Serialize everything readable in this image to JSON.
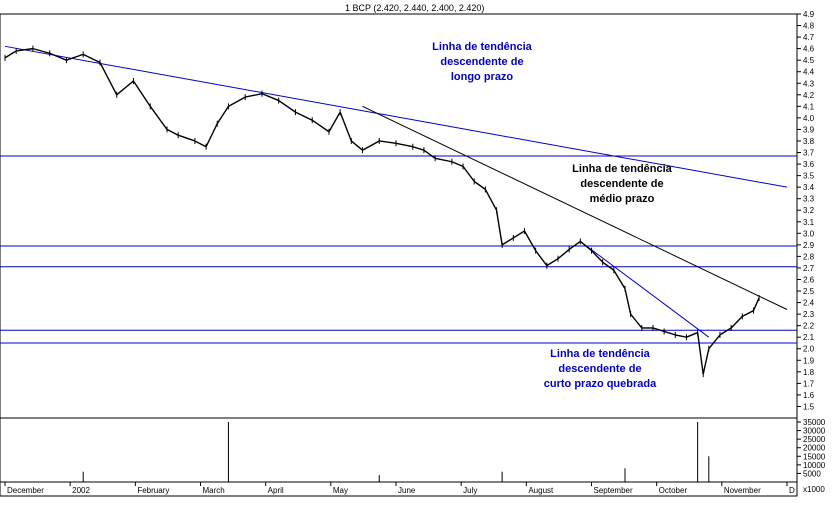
{
  "chart_data": {
    "type": "line",
    "title": "1 BCP (2.420, 2.440, 2.400, 2.420)",
    "price_axis": {
      "ylim": [
        1.4,
        4.9
      ],
      "tick_labels": [
        "1.5",
        "1.6",
        "1.7",
        "1.8",
        "1.9",
        "2.0",
        "2.1",
        "2.2",
        "2.3",
        "2.4",
        "2.5",
        "2.6",
        "2.7",
        "2.8",
        "2.9",
        "3.0",
        "3.1",
        "3.2",
        "3.3",
        "3.4",
        "3.5",
        "3.6",
        "3.7",
        "3.8",
        "3.9",
        "4.0",
        "4.1",
        "4.2",
        "4.3",
        "4.4",
        "4.5",
        "4.6",
        "4.7",
        "4.8",
        "4.9"
      ]
    },
    "volume_axis": {
      "ylim": [
        0,
        35000
      ],
      "tick_labels": [
        "5000",
        "10000",
        "15000",
        "20000",
        "25000",
        "30000",
        "35000"
      ],
      "multiplier_label": "x1000"
    },
    "x_axis": {
      "tick_labels": [
        "December",
        "2002",
        "February",
        "March",
        "April",
        "May",
        "June",
        "July",
        "August",
        "September",
        "October",
        "November",
        "D"
      ]
    },
    "horizontal_levels": [
      3.67,
      2.89,
      2.71,
      2.16,
      2.05
    ],
    "price_series": [
      {
        "t": 0,
        "v": 4.52
      },
      {
        "t": 2,
        "v": 4.58
      },
      {
        "t": 5,
        "v": 4.6
      },
      {
        "t": 8,
        "v": 4.56
      },
      {
        "t": 11,
        "v": 4.5
      },
      {
        "t": 14,
        "v": 4.55
      },
      {
        "t": 17,
        "v": 4.48
      },
      {
        "t": 20,
        "v": 4.2
      },
      {
        "t": 23,
        "v": 4.32
      },
      {
        "t": 26,
        "v": 4.1
      },
      {
        "t": 29,
        "v": 3.9
      },
      {
        "t": 31,
        "v": 3.85
      },
      {
        "t": 34,
        "v": 3.8
      },
      {
        "t": 36,
        "v": 3.75
      },
      {
        "t": 38,
        "v": 3.95
      },
      {
        "t": 40,
        "v": 4.1
      },
      {
        "t": 43,
        "v": 4.18
      },
      {
        "t": 46,
        "v": 4.21
      },
      {
        "t": 49,
        "v": 4.15
      },
      {
        "t": 52,
        "v": 4.05
      },
      {
        "t": 55,
        "v": 3.98
      },
      {
        "t": 58,
        "v": 3.88
      },
      {
        "t": 60,
        "v": 4.05
      },
      {
        "t": 62,
        "v": 3.8
      },
      {
        "t": 64,
        "v": 3.72
      },
      {
        "t": 67,
        "v": 3.8
      },
      {
        "t": 70,
        "v": 3.78
      },
      {
        "t": 73,
        "v": 3.75
      },
      {
        "t": 75,
        "v": 3.72
      },
      {
        "t": 77,
        "v": 3.65
      },
      {
        "t": 80,
        "v": 3.62
      },
      {
        "t": 82,
        "v": 3.58
      },
      {
        "t": 84,
        "v": 3.45
      },
      {
        "t": 86,
        "v": 3.38
      },
      {
        "t": 88,
        "v": 3.2
      },
      {
        "t": 89,
        "v": 2.9
      },
      {
        "t": 91,
        "v": 2.96
      },
      {
        "t": 93,
        "v": 3.02
      },
      {
        "t": 95,
        "v": 2.85
      },
      {
        "t": 97,
        "v": 2.72
      },
      {
        "t": 99,
        "v": 2.78
      },
      {
        "t": 101,
        "v": 2.86
      },
      {
        "t": 103,
        "v": 2.93
      },
      {
        "t": 105,
        "v": 2.85
      },
      {
        "t": 107,
        "v": 2.75
      },
      {
        "t": 109,
        "v": 2.68
      },
      {
        "t": 111,
        "v": 2.52
      },
      {
        "t": 112,
        "v": 2.3
      },
      {
        "t": 114,
        "v": 2.18
      },
      {
        "t": 116,
        "v": 2.18
      },
      {
        "t": 118,
        "v": 2.15
      },
      {
        "t": 120,
        "v": 2.12
      },
      {
        "t": 122,
        "v": 2.1
      },
      {
        "t": 124,
        "v": 2.14
      },
      {
        "t": 125,
        "v": 1.78
      },
      {
        "t": 126,
        "v": 2.0
      },
      {
        "t": 128,
        "v": 2.12
      },
      {
        "t": 130,
        "v": 2.18
      },
      {
        "t": 132,
        "v": 2.28
      },
      {
        "t": 134,
        "v": 2.33
      },
      {
        "t": 135,
        "v": 2.44
      }
    ],
    "volume_series": [
      {
        "t": 14,
        "v": 6000
      },
      {
        "t": 40,
        "v": 35000
      },
      {
        "t": 67,
        "v": 4000
      },
      {
        "t": 89,
        "v": 6000
      },
      {
        "t": 111,
        "v": 8000
      },
      {
        "t": 124,
        "v": 35000
      },
      {
        "t": 126,
        "v": 15000
      }
    ],
    "annotations": [
      {
        "text_lines": [
          "Linha de tendência",
          "descendente de",
          "longo prazo"
        ],
        "color": "#0000cc"
      },
      {
        "text_lines": [
          "Linha de tendência",
          "descendente de",
          "médio prazo"
        ],
        "color": "#000000"
      },
      {
        "text_lines": [
          "Linha de tendência",
          "descendente de",
          "curto prazo quebrada"
        ],
        "color": "#0000cc"
      }
    ],
    "colors": {
      "price": "#000000",
      "level": "#0000cc",
      "long_trend": "#0000cc",
      "mid_trend": "#000000",
      "short_trend": "#0000cc",
      "volume": "#000000"
    },
    "grid": false
  }
}
